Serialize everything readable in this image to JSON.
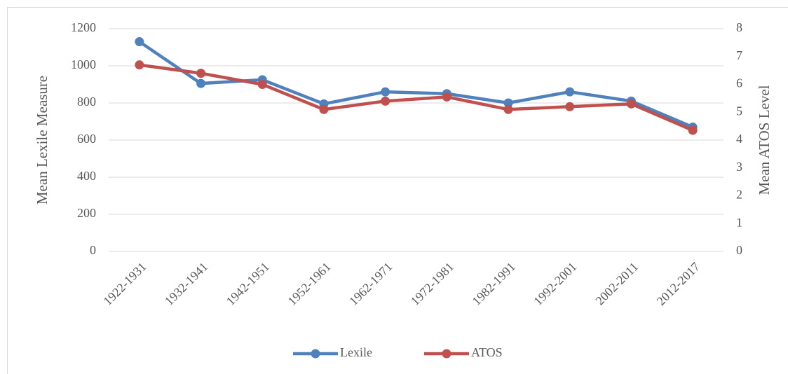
{
  "chart_data": {
    "type": "line",
    "ylabel": "Mean Lexile Measure",
    "y2label": "Mean ATOS Level",
    "categories": [
      "1922-1931",
      "1932-1941",
      "1942-1951",
      "1952-1961",
      "1962-1971",
      "1972-1981",
      "1982-1991",
      "1992-2001",
      "2002-2011",
      "2012-2017"
    ],
    "series": [
      {
        "name": "Lexile",
        "color": "#4f81bd",
        "values": [
          1130,
          905,
          925,
          795,
          860,
          850,
          800,
          860,
          810,
          670
        ]
      },
      {
        "name": "ATOS",
        "color": "#c0504d",
        "axis": "y2",
        "values": [
          6.7,
          6.4,
          6.0,
          5.1,
          5.4,
          5.55,
          5.1,
          5.2,
          5.3,
          4.35
        ]
      }
    ],
    "ylim": [
      0,
      1200
    ],
    "yticks": [
      0,
      200,
      400,
      600,
      800,
      1000,
      1200
    ],
    "y2lim": [
      0,
      8
    ],
    "y2ticks": [
      0,
      1,
      2,
      3,
      4,
      5,
      6,
      7,
      8
    ],
    "grid": true,
    "legend": "bottom"
  }
}
